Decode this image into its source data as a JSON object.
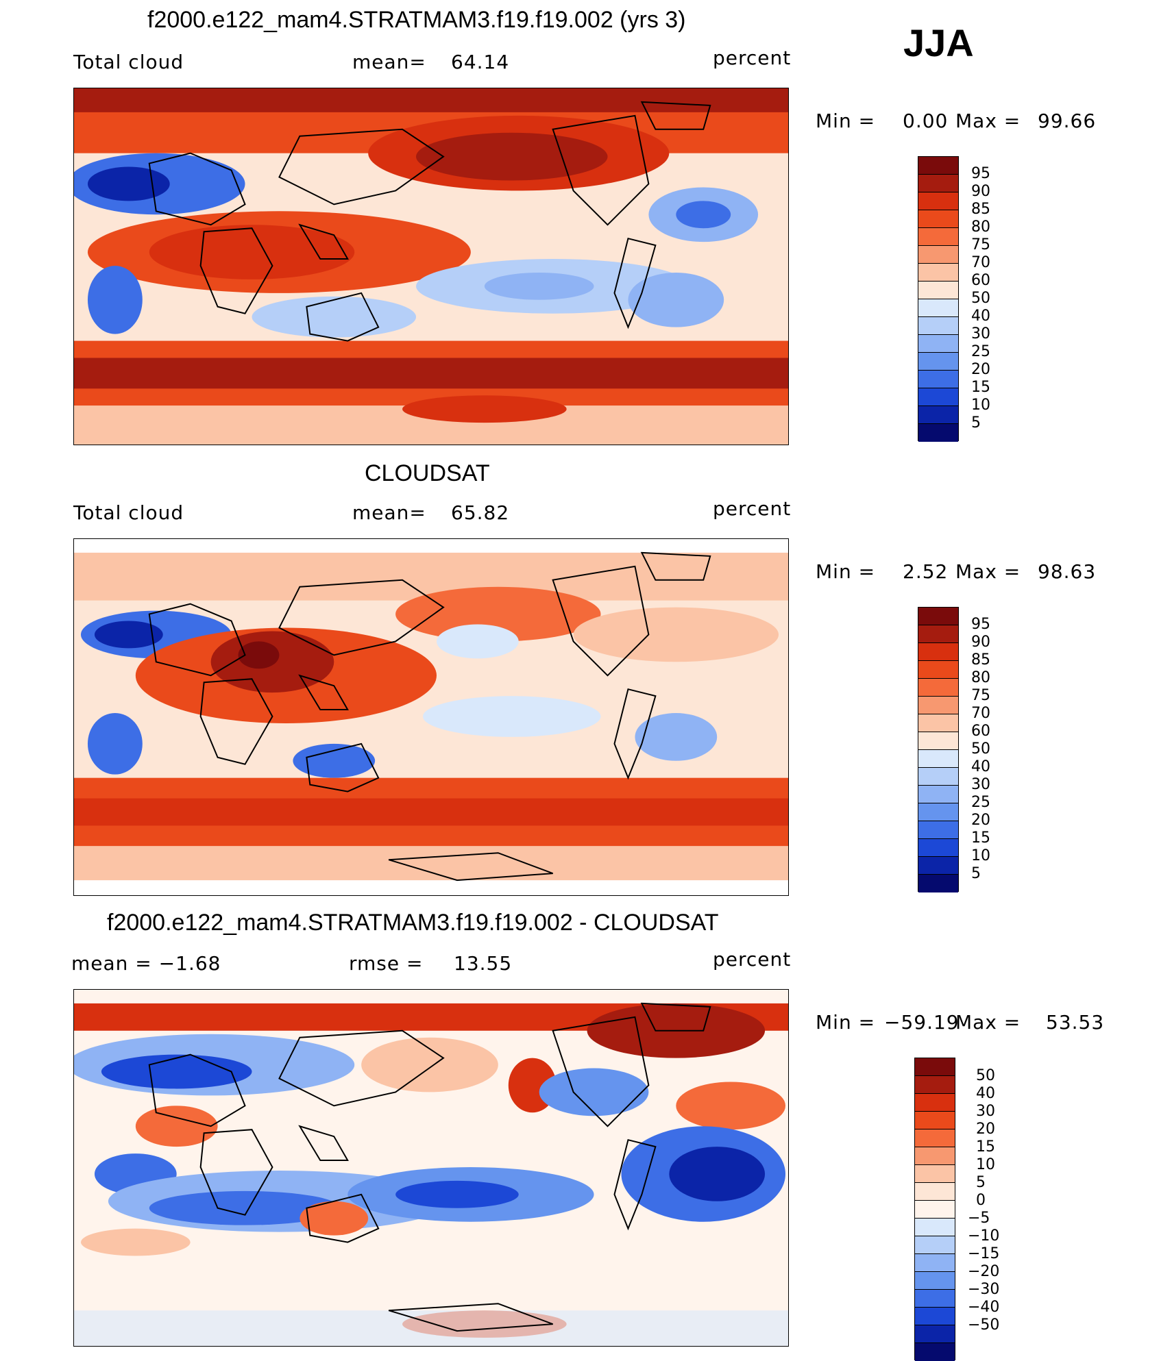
{
  "season": "JJA",
  "panels": [
    {
      "title": "f2000.e122_mam4.STRATMAM3.f19.f19.002 (yrs 3)",
      "left_label": "Total cloud",
      "stat_label": "mean=",
      "stat_value": "64.14",
      "units": "percent",
      "minmax": {
        "min_label": "Min  =",
        "min_value": "0.00",
        "max_label": "Max  =",
        "max_value": "99.66"
      },
      "colorbar_labels": [
        "95",
        "90",
        "85",
        "80",
        "75",
        "70",
        "60",
        "50",
        "40",
        "30",
        "25",
        "20",
        "15",
        "10",
        "5"
      ]
    },
    {
      "title": "CLOUDSAT",
      "left_label": "Total cloud",
      "stat_label": "mean=",
      "stat_value": "65.82",
      "units": "percent",
      "minmax": {
        "min_label": "Min  =",
        "min_value": "2.52",
        "max_label": "Max  =",
        "max_value": "98.63"
      },
      "colorbar_labels": [
        "95",
        "90",
        "85",
        "80",
        "75",
        "70",
        "60",
        "50",
        "40",
        "30",
        "25",
        "20",
        "15",
        "10",
        "5"
      ]
    },
    {
      "title": "f2000.e122_mam4.STRATMAM3.f19.f19.002 - CLOUDSAT",
      "left_label": "mean  =   −1.68",
      "stat_label": "rmse  =",
      "stat_value": "13.55",
      "units": "percent",
      "minmax": {
        "min_label": "Min  =",
        "min_value": "−59.19",
        "max_label": "Max  =",
        "max_value": "53.53"
      },
      "colorbar_labels": [
        "50",
        "40",
        "30",
        "20",
        "15",
        "10",
        "5",
        "0",
        "−5",
        "−10",
        "−15",
        "−20",
        "−30",
        "−40",
        "−50"
      ]
    }
  ],
  "colors": {
    "abs_scale": [
      "#7a0b0b",
      "#a51c0f",
      "#d8300f",
      "#ea4a1b",
      "#f46a3a",
      "#f79870",
      "#fbc4a6",
      "#fde6d6",
      "#d9e8fb",
      "#b5cff8",
      "#8fb3f4",
      "#6594ee",
      "#3d6ee6",
      "#1c48d6",
      "#0b24a8",
      "#050a6e"
    ],
    "diff_scale": [
      "#7a0b0b",
      "#a51c0f",
      "#d8300f",
      "#ea4a1b",
      "#f46a3a",
      "#f79870",
      "#fbc4a6",
      "#fde6d6",
      "#fff4ec",
      "#d9e8fb",
      "#b5cff8",
      "#8fb3f4",
      "#6594ee",
      "#3d6ee6",
      "#1c48d6",
      "#0b24a8",
      "#050a6e"
    ]
  }
}
